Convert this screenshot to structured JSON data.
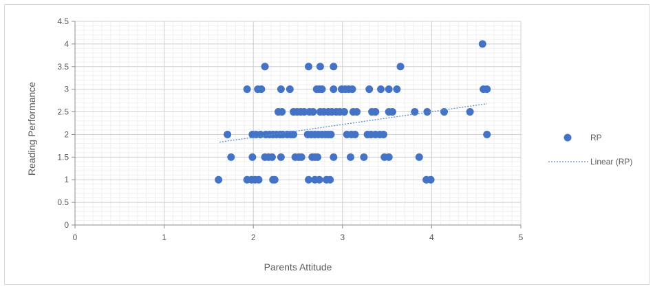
{
  "chart_data": {
    "type": "scatter",
    "title": "",
    "xlabel": "Parents Attitude",
    "ylabel": "Reading Performance",
    "xlim": [
      0,
      5
    ],
    "ylim": [
      0,
      4.5
    ],
    "x_ticks": [
      "0",
      "1",
      "2",
      "3",
      "4",
      "5"
    ],
    "y_ticks": [
      "0",
      "0.5",
      "1",
      "1.5",
      "2",
      "2.5",
      "3",
      "3.5",
      "4",
      "4.5"
    ],
    "grid": "major and minor gridlines",
    "legend_position": "right",
    "marker_color": "#4472c4",
    "trendline_color": "#5b8bd0",
    "series": [
      {
        "name": "RP",
        "x": [
          1.61,
          1.93,
          1.98,
          2.02,
          2.06,
          2.22,
          2.24,
          2.62,
          2.69,
          2.74,
          2.82,
          2.86,
          3.94,
          3.99,
          1.75,
          1.99,
          2.13,
          2.17,
          2.21,
          2.31,
          2.47,
          2.51,
          2.54,
          2.66,
          2.69,
          2.72,
          2.9,
          3.09,
          3.24,
          3.47,
          3.52,
          3.86,
          1.71,
          1.99,
          2.03,
          2.08,
          2.14,
          2.18,
          2.22,
          2.26,
          2.3,
          2.33,
          2.38,
          2.42,
          2.45,
          2.61,
          2.65,
          2.69,
          2.73,
          2.77,
          2.81,
          2.84,
          2.87,
          3.05,
          3.1,
          3.14,
          3.28,
          3.32,
          3.37,
          3.42,
          3.46,
          4.62,
          2.28,
          2.32,
          2.45,
          2.49,
          2.53,
          2.57,
          2.63,
          2.67,
          2.75,
          2.79,
          2.84,
          2.88,
          2.93,
          2.97,
          3.02,
          3.12,
          3.16,
          3.33,
          3.37,
          3.52,
          3.56,
          3.81,
          3.95,
          4.14,
          4.43,
          1.93,
          2.05,
          2.09,
          2.31,
          2.41,
          2.71,
          2.74,
          2.77,
          2.9,
          2.99,
          3.03,
          3.07,
          3.11,
          3.3,
          3.43,
          3.52,
          3.61,
          4.58,
          4.62,
          2.13,
          2.62,
          2.75,
          2.9,
          3.65,
          4.57
        ],
        "y": [
          1,
          1,
          1,
          1,
          1,
          1,
          1,
          1,
          1,
          1,
          1,
          1,
          1,
          1,
          1.5,
          1.5,
          1.5,
          1.5,
          1.5,
          1.5,
          1.5,
          1.5,
          1.5,
          1.5,
          1.5,
          1.5,
          1.5,
          1.5,
          1.5,
          1.5,
          1.5,
          1.5,
          2,
          2,
          2,
          2,
          2,
          2,
          2,
          2,
          2,
          2,
          2,
          2,
          2,
          2,
          2,
          2,
          2,
          2,
          2,
          2,
          2,
          2,
          2,
          2,
          2,
          2,
          2,
          2,
          2,
          2,
          2.5,
          2.5,
          2.5,
          2.5,
          2.5,
          2.5,
          2.5,
          2.5,
          2.5,
          2.5,
          2.5,
          2.5,
          2.5,
          2.5,
          2.5,
          2.5,
          2.5,
          2.5,
          2.5,
          2.5,
          2.5,
          2.5,
          2.5,
          2.5,
          2.5,
          3,
          3,
          3,
          3,
          3,
          3,
          3,
          3,
          3,
          3,
          3,
          3,
          3,
          3,
          3,
          3,
          3,
          3,
          3,
          3.5,
          3.5,
          3.5,
          3.5,
          3.5,
          4
        ]
      },
      {
        "name": "Linear (RP)",
        "type": "trendline",
        "x": [
          1.62,
          4.62
        ],
        "y": [
          1.83,
          2.68
        ]
      }
    ]
  }
}
